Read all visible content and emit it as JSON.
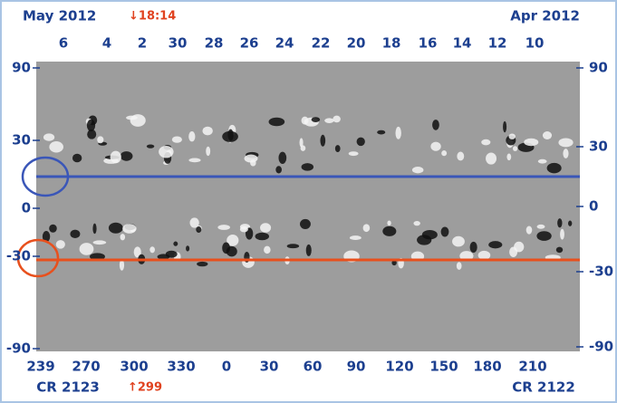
{
  "top_axis": {
    "left_title": "May 2012",
    "right_title": "Apr 2012",
    "marker": "↓18:14",
    "days": [
      6,
      4,
      2,
      30,
      28,
      26,
      24,
      22,
      20,
      18,
      16,
      14,
      12,
      10
    ]
  },
  "left_axis": {
    "ticks": [
      90,
      30,
      0,
      -30,
      -90
    ]
  },
  "right_axis": {
    "ticks": [
      90,
      30,
      0,
      -30,
      -90
    ]
  },
  "bottom_axis": {
    "longitudes": [
      239,
      270,
      300,
      330,
      0,
      30,
      60,
      90,
      120,
      150,
      180,
      210
    ],
    "left_rotation": "CR 2123",
    "marker": "↑299",
    "right_rotation": "CR 2122"
  }
}
